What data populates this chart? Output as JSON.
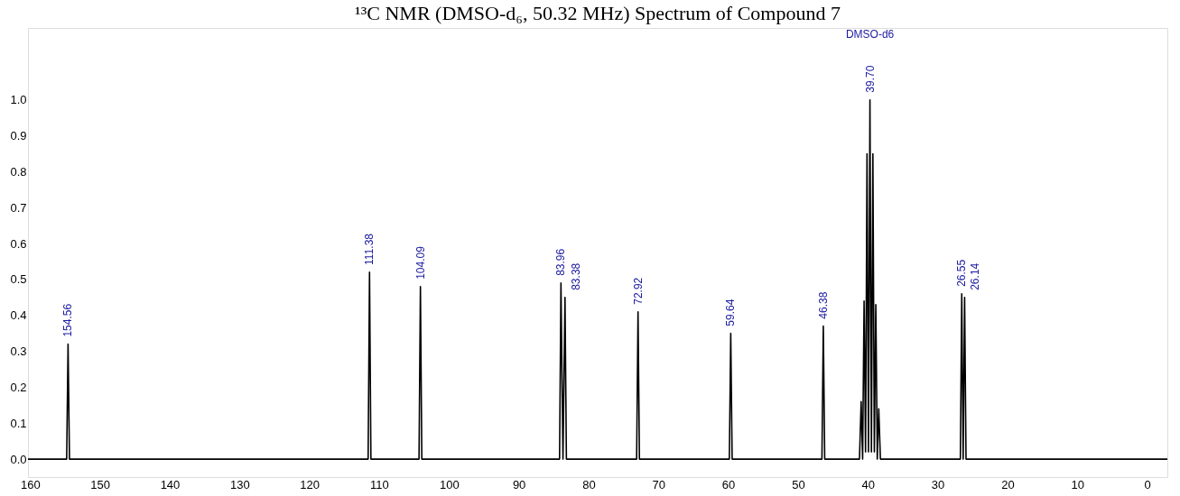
{
  "chart_data": {
    "type": "line",
    "title": "¹³C NMR (DMSO-d₆, 50.32 MHz) Spectrum of Compound 7",
    "series": [
      {
        "color": "#000000",
        "x": [
          160.3,
          155.5,
          154.76,
          154.56,
          154.36,
          150,
          145,
          140,
          135,
          130,
          125,
          120,
          115,
          111.58,
          111.38,
          111.18,
          108,
          104.29,
          104.09,
          103.89,
          95,
          90,
          84.16,
          83.96,
          83.67,
          83.38,
          83.18,
          78,
          73.12,
          72.92,
          72.72,
          65,
          59.84,
          59.64,
          59.44,
          52,
          46.58,
          46.38,
          46.18,
          41.2,
          40.96,
          40.75,
          40.54,
          40.33,
          40.12,
          39.91,
          39.7,
          39.49,
          39.28,
          39.07,
          38.86,
          38.65,
          38.44,
          38.2,
          32,
          26.75,
          26.55,
          26.35,
          26.14,
          25.94,
          20,
          15,
          10,
          5,
          0,
          -2.9
        ],
        "values": [
          0.0,
          0.0,
          0.0,
          0.32,
          0.0,
          0.0,
          0.0,
          0.0,
          0.0,
          0.0,
          0.0,
          0.0,
          0.0,
          0.0,
          0.52,
          0.0,
          0.0,
          0.0,
          0.48,
          0.0,
          0.0,
          0.0,
          0.0,
          0.49,
          0.0,
          0.45,
          0.0,
          0.0,
          0.0,
          0.41,
          0.0,
          0.0,
          0.0,
          0.35,
          0.0,
          0.0,
          0.0,
          0.37,
          0.0,
          0.0,
          0.16,
          0.0,
          0.44,
          0.02,
          0.85,
          0.02,
          1.0,
          0.02,
          0.85,
          0.02,
          0.43,
          0.0,
          0.14,
          0.0,
          0.0,
          0.0,
          0.46,
          0.0,
          0.45,
          0.0,
          0.0,
          0.0,
          0.0,
          0.0,
          0.0,
          0.0
        ]
      }
    ],
    "xlim": [
      160.3,
      -2.9
    ],
    "xticks": [
      160,
      150,
      140,
      130,
      120,
      110,
      100,
      90,
      80,
      70,
      60,
      50,
      40,
      30,
      20,
      10,
      0
    ],
    "ylim": [
      -0.05,
      1.2
    ],
    "yticks": [
      {
        "value": 0,
        "label": "0.0"
      },
      0.1,
      0.2,
      0.3,
      0.4,
      0.5,
      0.6,
      0.7,
      0.8,
      0.9,
      {
        "value": 1,
        "label": "1.0"
      }
    ],
    "grid": false,
    "marker": "none",
    "line_style": "solid",
    "annotations": [
      {
        "text": "154.56",
        "x": 154.56,
        "y": 0.32
      },
      {
        "text": "111.38",
        "x": 111.38,
        "y": 0.52
      },
      {
        "text": "104.09",
        "x": 104.09,
        "y": 0.48
      },
      {
        "text": "83.96",
        "x": 83.96,
        "y": 0.49
      },
      {
        "text": "83.38",
        "x": 83.38,
        "y": 0.45
      },
      {
        "text": "72.92",
        "x": 72.92,
        "y": 0.41
      },
      {
        "text": "59.64",
        "x": 59.64,
        "y": 0.35
      },
      {
        "text": "46.38",
        "x": 46.38,
        "y": 0.37
      },
      {
        "text": "39.70",
        "x": 39.7,
        "y": 1.0
      },
      "DMSO-d6",
      {
        "text": "26.55",
        "x": 26.55,
        "y": 0.46
      },
      {
        "text": "26.14",
        "x": 26.14,
        "y": 0.45
      }
    ]
  }
}
